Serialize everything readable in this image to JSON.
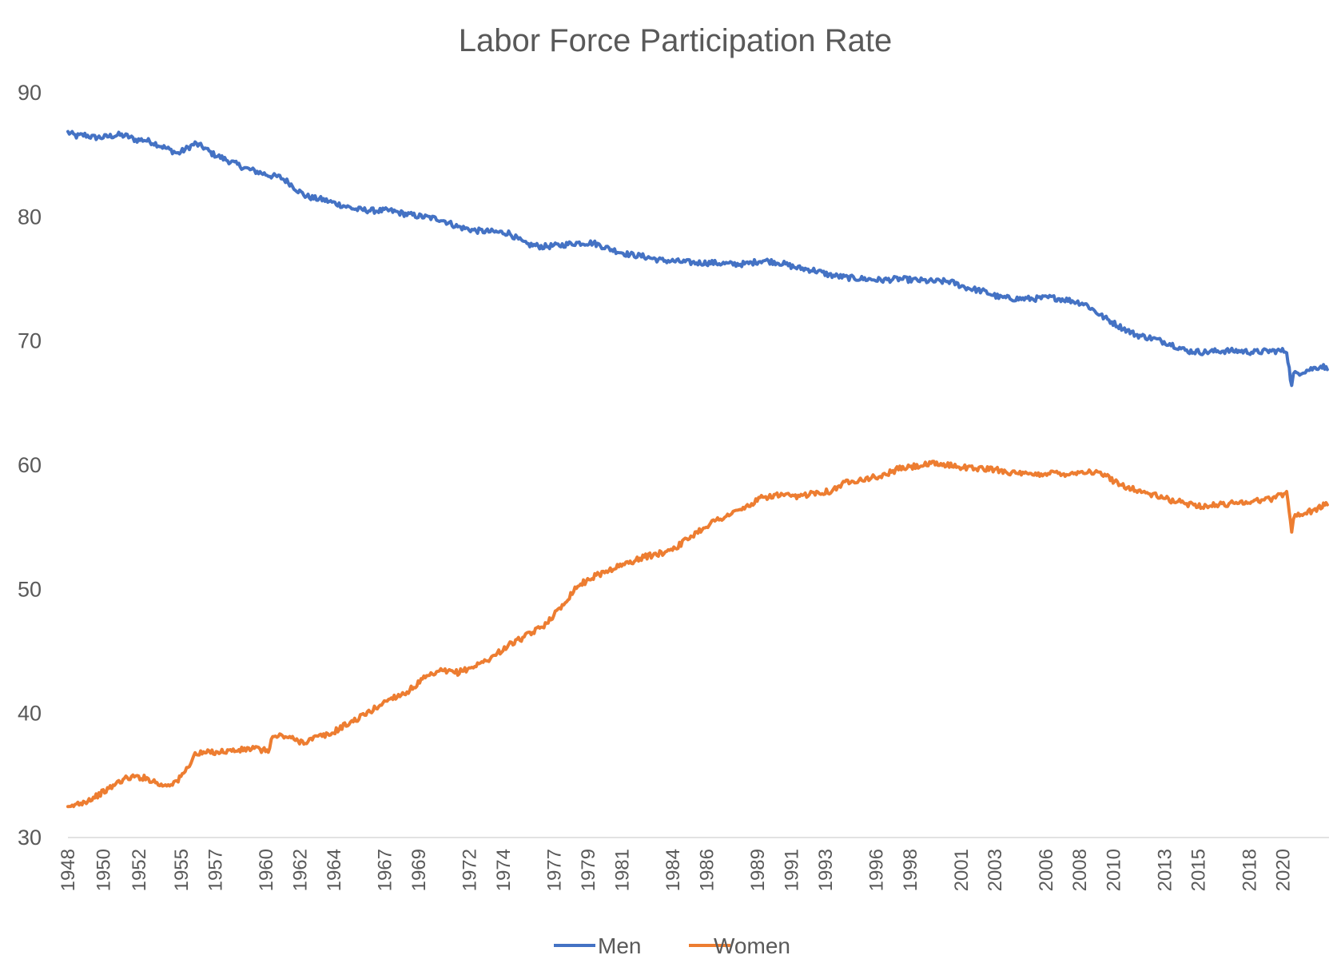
{
  "chart_data": {
    "type": "line",
    "title": "Labor Force Participation Rate",
    "xlabel": "",
    "ylabel": "",
    "ylim": [
      30,
      90
    ],
    "xlim": [
      1948.0,
      2022.4
    ],
    "yticks": [
      30,
      40,
      50,
      60,
      70,
      80,
      90
    ],
    "grid": false,
    "legend": "bottom-center",
    "xtick_labels": [
      "1948",
      "1950",
      "1952",
      "1955",
      "1957",
      "1960",
      "1962",
      "1964",
      "1967",
      "1969",
      "1972",
      "1974",
      "1977",
      "1979",
      "1981",
      "1984",
      "1986",
      "1989",
      "1991",
      "1993",
      "1996",
      "1998",
      "2001",
      "2003",
      "2006",
      "2008",
      "2010",
      "2013",
      "2015",
      "2018",
      "2020"
    ],
    "x_tick_values": [
      1948.0,
      1950.1,
      1952.2,
      1954.7,
      1956.7,
      1959.7,
      1961.7,
      1963.7,
      1966.7,
      1968.7,
      1971.7,
      1973.7,
      1976.7,
      1978.7,
      1980.7,
      1983.7,
      1985.7,
      1988.7,
      1990.7,
      1992.7,
      1995.7,
      1997.7,
      2000.7,
      2002.7,
      2005.7,
      2007.7,
      2009.7,
      2012.7,
      2014.7,
      2017.7,
      2019.7
    ],
    "series": [
      {
        "name": "Men",
        "color": "#4472C4",
        "x": [
          1948.0,
          1948.5,
          1949.0,
          1949.5,
          1950.0,
          1950.5,
          1951.0,
          1951.5,
          1952.0,
          1952.5,
          1953.0,
          1953.5,
          1954.0,
          1954.5,
          1955.0,
          1955.5,
          1956.0,
          1956.5,
          1957.0,
          1957.5,
          1958.0,
          1958.5,
          1959.0,
          1959.5,
          1960.0,
          1960.5,
          1961.0,
          1961.5,
          1962.0,
          1962.5,
          1963.0,
          1963.5,
          1964.0,
          1965.0,
          1966.0,
          1967.0,
          1968.0,
          1969.0,
          1970.0,
          1971.0,
          1972.0,
          1973.0,
          1974.0,
          1975.0,
          1976.0,
          1977.0,
          1978.0,
          1979.0,
          1980.0,
          1981.0,
          1982.0,
          1983.0,
          1984.0,
          1985.0,
          1986.0,
          1987.0,
          1988.0,
          1989.0,
          1990.0,
          1991.0,
          1992.0,
          1993.0,
          1994.0,
          1995.0,
          1996.0,
          1997.0,
          1998.0,
          1999.0,
          2000.0,
          2001.0,
          2002.0,
          2003.0,
          2004.0,
          2005.0,
          2006.0,
          2007.0,
          2008.0,
          2009.0,
          2010.0,
          2011.0,
          2012.0,
          2013.0,
          2014.0,
          2015.0,
          2016.0,
          2017.0,
          2018.0,
          2019.0,
          2019.9,
          2020.2,
          2020.3,
          2020.5,
          2021.0,
          2021.5,
          2022.0,
          2022.3
        ],
        "values": [
          86.8,
          86.5,
          86.6,
          86.4,
          86.4,
          86.5,
          86.6,
          86.5,
          86.2,
          86.2,
          86.0,
          85.7,
          85.4,
          85.1,
          85.5,
          85.9,
          85.6,
          85.1,
          84.8,
          84.5,
          84.2,
          83.9,
          83.7,
          83.5,
          83.3,
          83.2,
          82.8,
          82.2,
          81.7,
          81.5,
          81.4,
          81.2,
          81.0,
          80.6,
          80.5,
          80.5,
          80.2,
          80.0,
          79.8,
          79.2,
          78.9,
          78.8,
          78.7,
          77.8,
          77.6,
          77.7,
          77.9,
          77.9,
          77.4,
          77.0,
          76.8,
          76.5,
          76.4,
          76.3,
          76.3,
          76.2,
          76.2,
          76.5,
          76.3,
          75.9,
          75.7,
          75.3,
          75.1,
          75.0,
          74.9,
          75.0,
          74.9,
          74.8,
          74.8,
          74.3,
          74.0,
          73.5,
          73.4,
          73.4,
          73.5,
          73.3,
          73.0,
          72.0,
          71.2,
          70.5,
          70.2,
          69.8,
          69.2,
          69.1,
          69.2,
          69.2,
          69.1,
          69.2,
          69.2,
          66.3,
          67.3,
          67.4,
          67.6,
          67.8,
          68.0,
          67.7
        ]
      },
      {
        "name": "Women",
        "color": "#ED7D31",
        "x": [
          1948.0,
          1948.5,
          1949.0,
          1949.5,
          1950.0,
          1950.5,
          1951.0,
          1951.5,
          1952.0,
          1952.5,
          1953.0,
          1953.5,
          1954.0,
          1954.5,
          1955.0,
          1955.5,
          1956.0,
          1956.5,
          1957.0,
          1957.5,
          1958.0,
          1958.5,
          1959.0,
          1959.5,
          1959.9,
          1960.0,
          1960.5,
          1961.0,
          1961.5,
          1962.0,
          1962.5,
          1963.0,
          1963.5,
          1964.0,
          1965.0,
          1966.0,
          1967.0,
          1968.0,
          1969.0,
          1970.0,
          1971.0,
          1972.0,
          1973.0,
          1974.0,
          1975.0,
          1976.0,
          1977.0,
          1978.0,
          1979.0,
          1980.0,
          1981.0,
          1982.0,
          1983.0,
          1984.0,
          1985.0,
          1986.0,
          1987.0,
          1988.0,
          1989.0,
          1990.0,
          1991.0,
          1992.0,
          1993.0,
          1994.0,
          1995.0,
          1996.0,
          1997.0,
          1998.0,
          1999.0,
          2000.0,
          2001.0,
          2002.0,
          2003.0,
          2004.0,
          2005.0,
          2006.0,
          2007.0,
          2008.0,
          2009.0,
          2010.0,
          2011.0,
          2012.0,
          2013.0,
          2014.0,
          2015.0,
          2016.0,
          2017.0,
          2018.0,
          2019.0,
          2019.9,
          2020.2,
          2020.3,
          2020.5,
          2021.0,
          2021.5,
          2022.0,
          2022.3
        ],
        "values": [
          32.3,
          32.7,
          32.9,
          33.2,
          33.6,
          34.0,
          34.5,
          34.8,
          34.9,
          34.8,
          34.6,
          34.2,
          34.3,
          34.6,
          35.5,
          36.7,
          36.8,
          36.9,
          36.9,
          37.0,
          37.0,
          37.1,
          37.2,
          37.0,
          37.1,
          38.0,
          38.2,
          38.1,
          37.8,
          37.7,
          38.0,
          38.2,
          38.3,
          38.8,
          39.5,
          40.3,
          41.2,
          41.7,
          42.8,
          43.4,
          43.3,
          43.8,
          44.5,
          45.5,
          46.2,
          47.0,
          48.4,
          50.2,
          51.0,
          51.6,
          52.1,
          52.6,
          52.9,
          53.5,
          54.5,
          55.4,
          56.0,
          56.6,
          57.4,
          57.6,
          57.4,
          57.8,
          57.9,
          58.7,
          58.9,
          59.1,
          59.7,
          59.9,
          60.1,
          60.0,
          59.8,
          59.7,
          59.6,
          59.3,
          59.2,
          59.4,
          59.3,
          59.5,
          59.3,
          58.5,
          58.0,
          57.6,
          57.2,
          56.9,
          56.7,
          56.8,
          57.0,
          57.1,
          57.3,
          57.8,
          54.8,
          55.7,
          56.0,
          56.1,
          56.4,
          56.7,
          56.8
        ]
      }
    ]
  }
}
